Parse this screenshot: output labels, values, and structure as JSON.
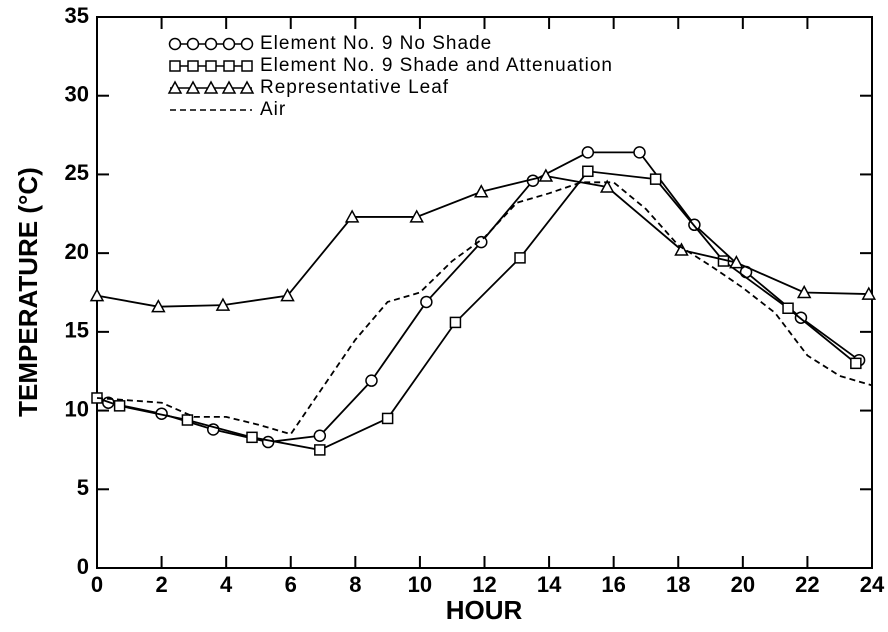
{
  "chart_data": {
    "type": "line",
    "xlabel": "HOUR",
    "ylabel": "TEMPERATURE (°C)",
    "xlim": [
      0,
      24
    ],
    "xticks": [
      0,
      2,
      4,
      6,
      8,
      10,
      12,
      14,
      16,
      18,
      20,
      22,
      24
    ],
    "ylim": [
      0,
      35
    ],
    "yticks": [
      0,
      5,
      10,
      15,
      20,
      25,
      30,
      35
    ],
    "legend": "upper left",
    "series": [
      {
        "name": "Element No. 9 No Shade",
        "color": "#000000",
        "marker": "circle",
        "x": [
          0.35,
          2,
          3.6,
          5.3,
          6.9,
          8.5,
          10.2,
          11.9,
          13.5,
          15.2,
          16.8,
          18.5,
          20.1,
          21.8,
          23.6
        ],
        "values": [
          10.5,
          9.8,
          8.8,
          8.0,
          8.4,
          11.9,
          16.9,
          20.7,
          24.6,
          26.4,
          26.4,
          21.8,
          18.8,
          15.9,
          13.2
        ]
      },
      {
        "name": "Element No. 9 Shade and Attenuation",
        "color": "#000000",
        "marker": "square",
        "x": [
          0,
          0.7,
          2.8,
          4.8,
          6.9,
          9.0,
          11.1,
          13.1,
          15.2,
          17.3,
          19.4,
          21.4,
          23.5
        ],
        "values": [
          10.8,
          10.3,
          9.4,
          8.3,
          7.5,
          9.5,
          15.6,
          19.7,
          25.2,
          24.7,
          19.5,
          16.5,
          13.0
        ]
      },
      {
        "name": "Representative Leaf",
        "color": "#000000",
        "marker": "triangle",
        "x": [
          0,
          1.9,
          3.9,
          5.9,
          7.9,
          9.9,
          11.9,
          13.9,
          15.8,
          18.1,
          19.8,
          21.9,
          23.9
        ],
        "values": [
          17.3,
          16.6,
          16.7,
          17.3,
          22.3,
          22.3,
          23.9,
          24.9,
          24.2,
          20.2,
          19.4,
          17.5,
          17.4
        ]
      },
      {
        "name": "Air",
        "color": "#000000",
        "dashed": true,
        "x": [
          0,
          2,
          3,
          4,
          5,
          6,
          7,
          8,
          9,
          10,
          11,
          12,
          13,
          14,
          15,
          16,
          17,
          18,
          19,
          20,
          21,
          22,
          23,
          24
        ],
        "values": [
          10.8,
          10.5,
          9.6,
          9.6,
          9.1,
          8.5,
          11.5,
          14.5,
          16.9,
          17.5,
          19.5,
          21,
          23.2,
          23.8,
          24.5,
          24.5,
          22.8,
          20.5,
          19.2,
          17.8,
          16.2,
          13.5,
          12.2,
          11.6
        ]
      }
    ]
  }
}
